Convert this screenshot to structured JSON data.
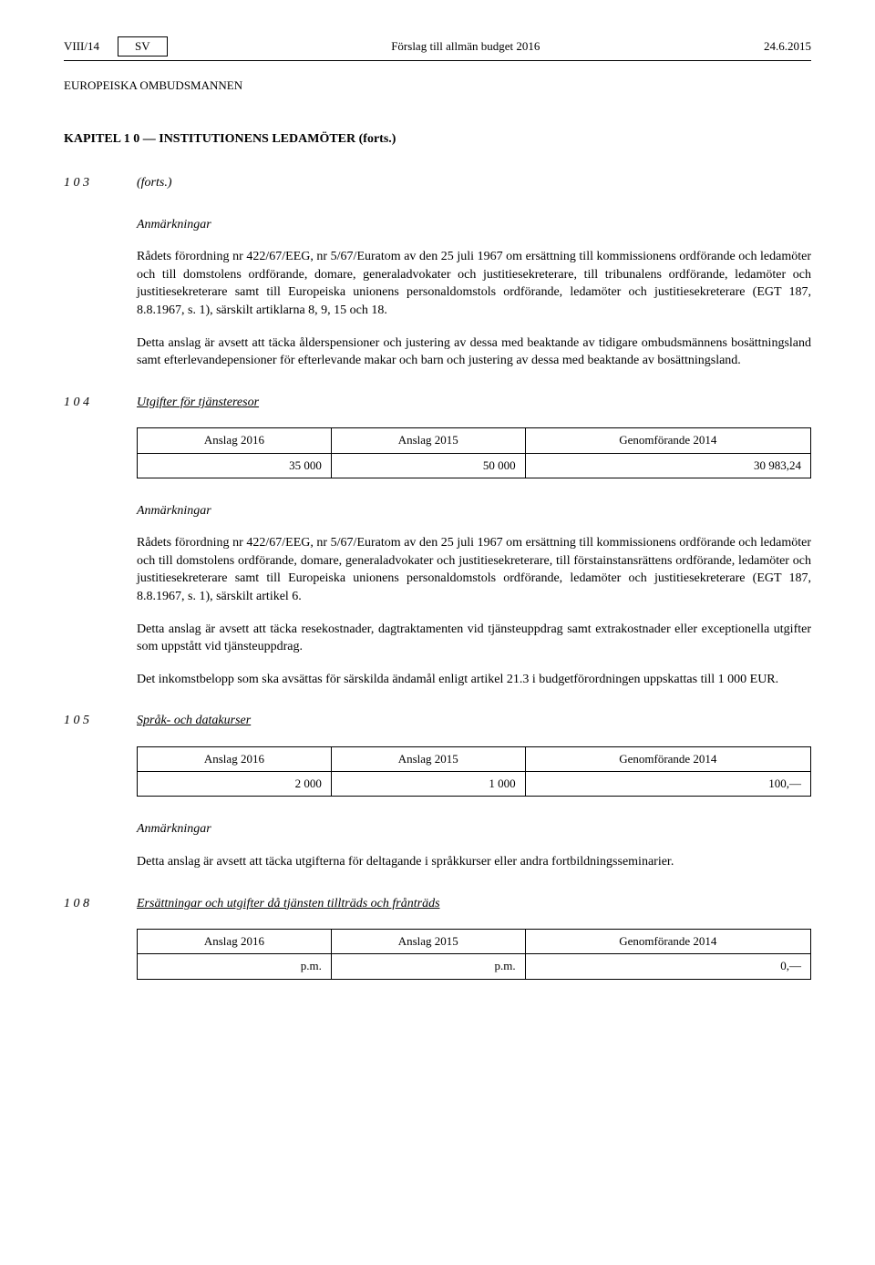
{
  "header": {
    "page_ref": "VIII/14",
    "lang_box": "SV",
    "center": "Förslag till allmän budget 2016",
    "date": "24.6.2015"
  },
  "owner": "EUROPEISKA OMBUDSMANNEN",
  "chapter": "KAPITEL 1 0 — INSTITUTIONENS LEDAMÖTER (forts.)",
  "sec103": {
    "num": "1 0 3",
    "title": "(forts.)",
    "remarks_label": "Anmärkningar",
    "p1": "Rådets förordning nr 422/67/EEG, nr 5/67/Euratom av den 25 juli 1967 om ersättning till kommissionens ordförande och ledamöter och till domstolens ordförande, domare, generaladvokater och justitiesekreterare, till tribunalens ordförande, ledamöter och justitiesekreterare samt till Europeiska unionens personaldomstols ordförande, ledamöter och justitiesekreterare (EGT 187, 8.8.1967, s. 1), särskilt artiklarna 8, 9, 15 och 18.",
    "p2": "Detta anslag är avsett att täcka ålderspensioner och justering av dessa med beaktande av tidigare ombudsmännens bosättningsland samt efterlevandepensioner för efterlevande makar och barn och justering av dessa med beaktande av bosättningsland."
  },
  "sec104": {
    "num": "1 0 4",
    "title": "Utgifter för tjänsteresor",
    "table": {
      "headers": [
        "Anslag 2016",
        "Anslag 2015",
        "Genomförande 2014"
      ],
      "row": [
        "35 000",
        "50 000",
        "30 983,24"
      ]
    },
    "remarks_label": "Anmärkningar",
    "p1": "Rådets förordning nr 422/67/EEG, nr 5/67/Euratom av den 25 juli 1967 om ersättning till kommissionens ordförande och ledamöter och till domstolens ordförande, domare, generaladvokater och justitiesekreterare, till förstainstansrättens ordförande, ledamöter och justitiesekreterare samt till Europeiska unionens personaldomstols ordförande, ledamöter och justitiesekreterare (EGT 187, 8.8.1967, s. 1), särskilt artikel 6.",
    "p2": "Detta anslag är avsett att täcka resekostnader, dagtraktamenten vid tjänsteuppdrag samt extrakostnader eller exceptionella utgifter som uppstått vid tjänsteuppdrag.",
    "p3": "Det inkomstbelopp som ska avsättas för särskilda ändamål enligt artikel 21.3 i budgetförordningen uppskattas till 1 000 EUR."
  },
  "sec105": {
    "num": "1 0 5",
    "title": "Språk- och datakurser",
    "table": {
      "headers": [
        "Anslag 2016",
        "Anslag 2015",
        "Genomförande 2014"
      ],
      "row": [
        "2 000",
        "1 000",
        "100,—"
      ]
    },
    "remarks_label": "Anmärkningar",
    "p1": "Detta anslag är avsett att täcka utgifterna för deltagande i språkkurser eller andra fortbildningsseminarier."
  },
  "sec108": {
    "num": "1 0 8",
    "title": "Ersättningar och utgifter då tjänsten tillträds och frånträds",
    "table": {
      "headers": [
        "Anslag 2016",
        "Anslag 2015",
        "Genomförande 2014"
      ],
      "row": [
        "p.m.",
        "p.m.",
        "0,—"
      ]
    }
  }
}
